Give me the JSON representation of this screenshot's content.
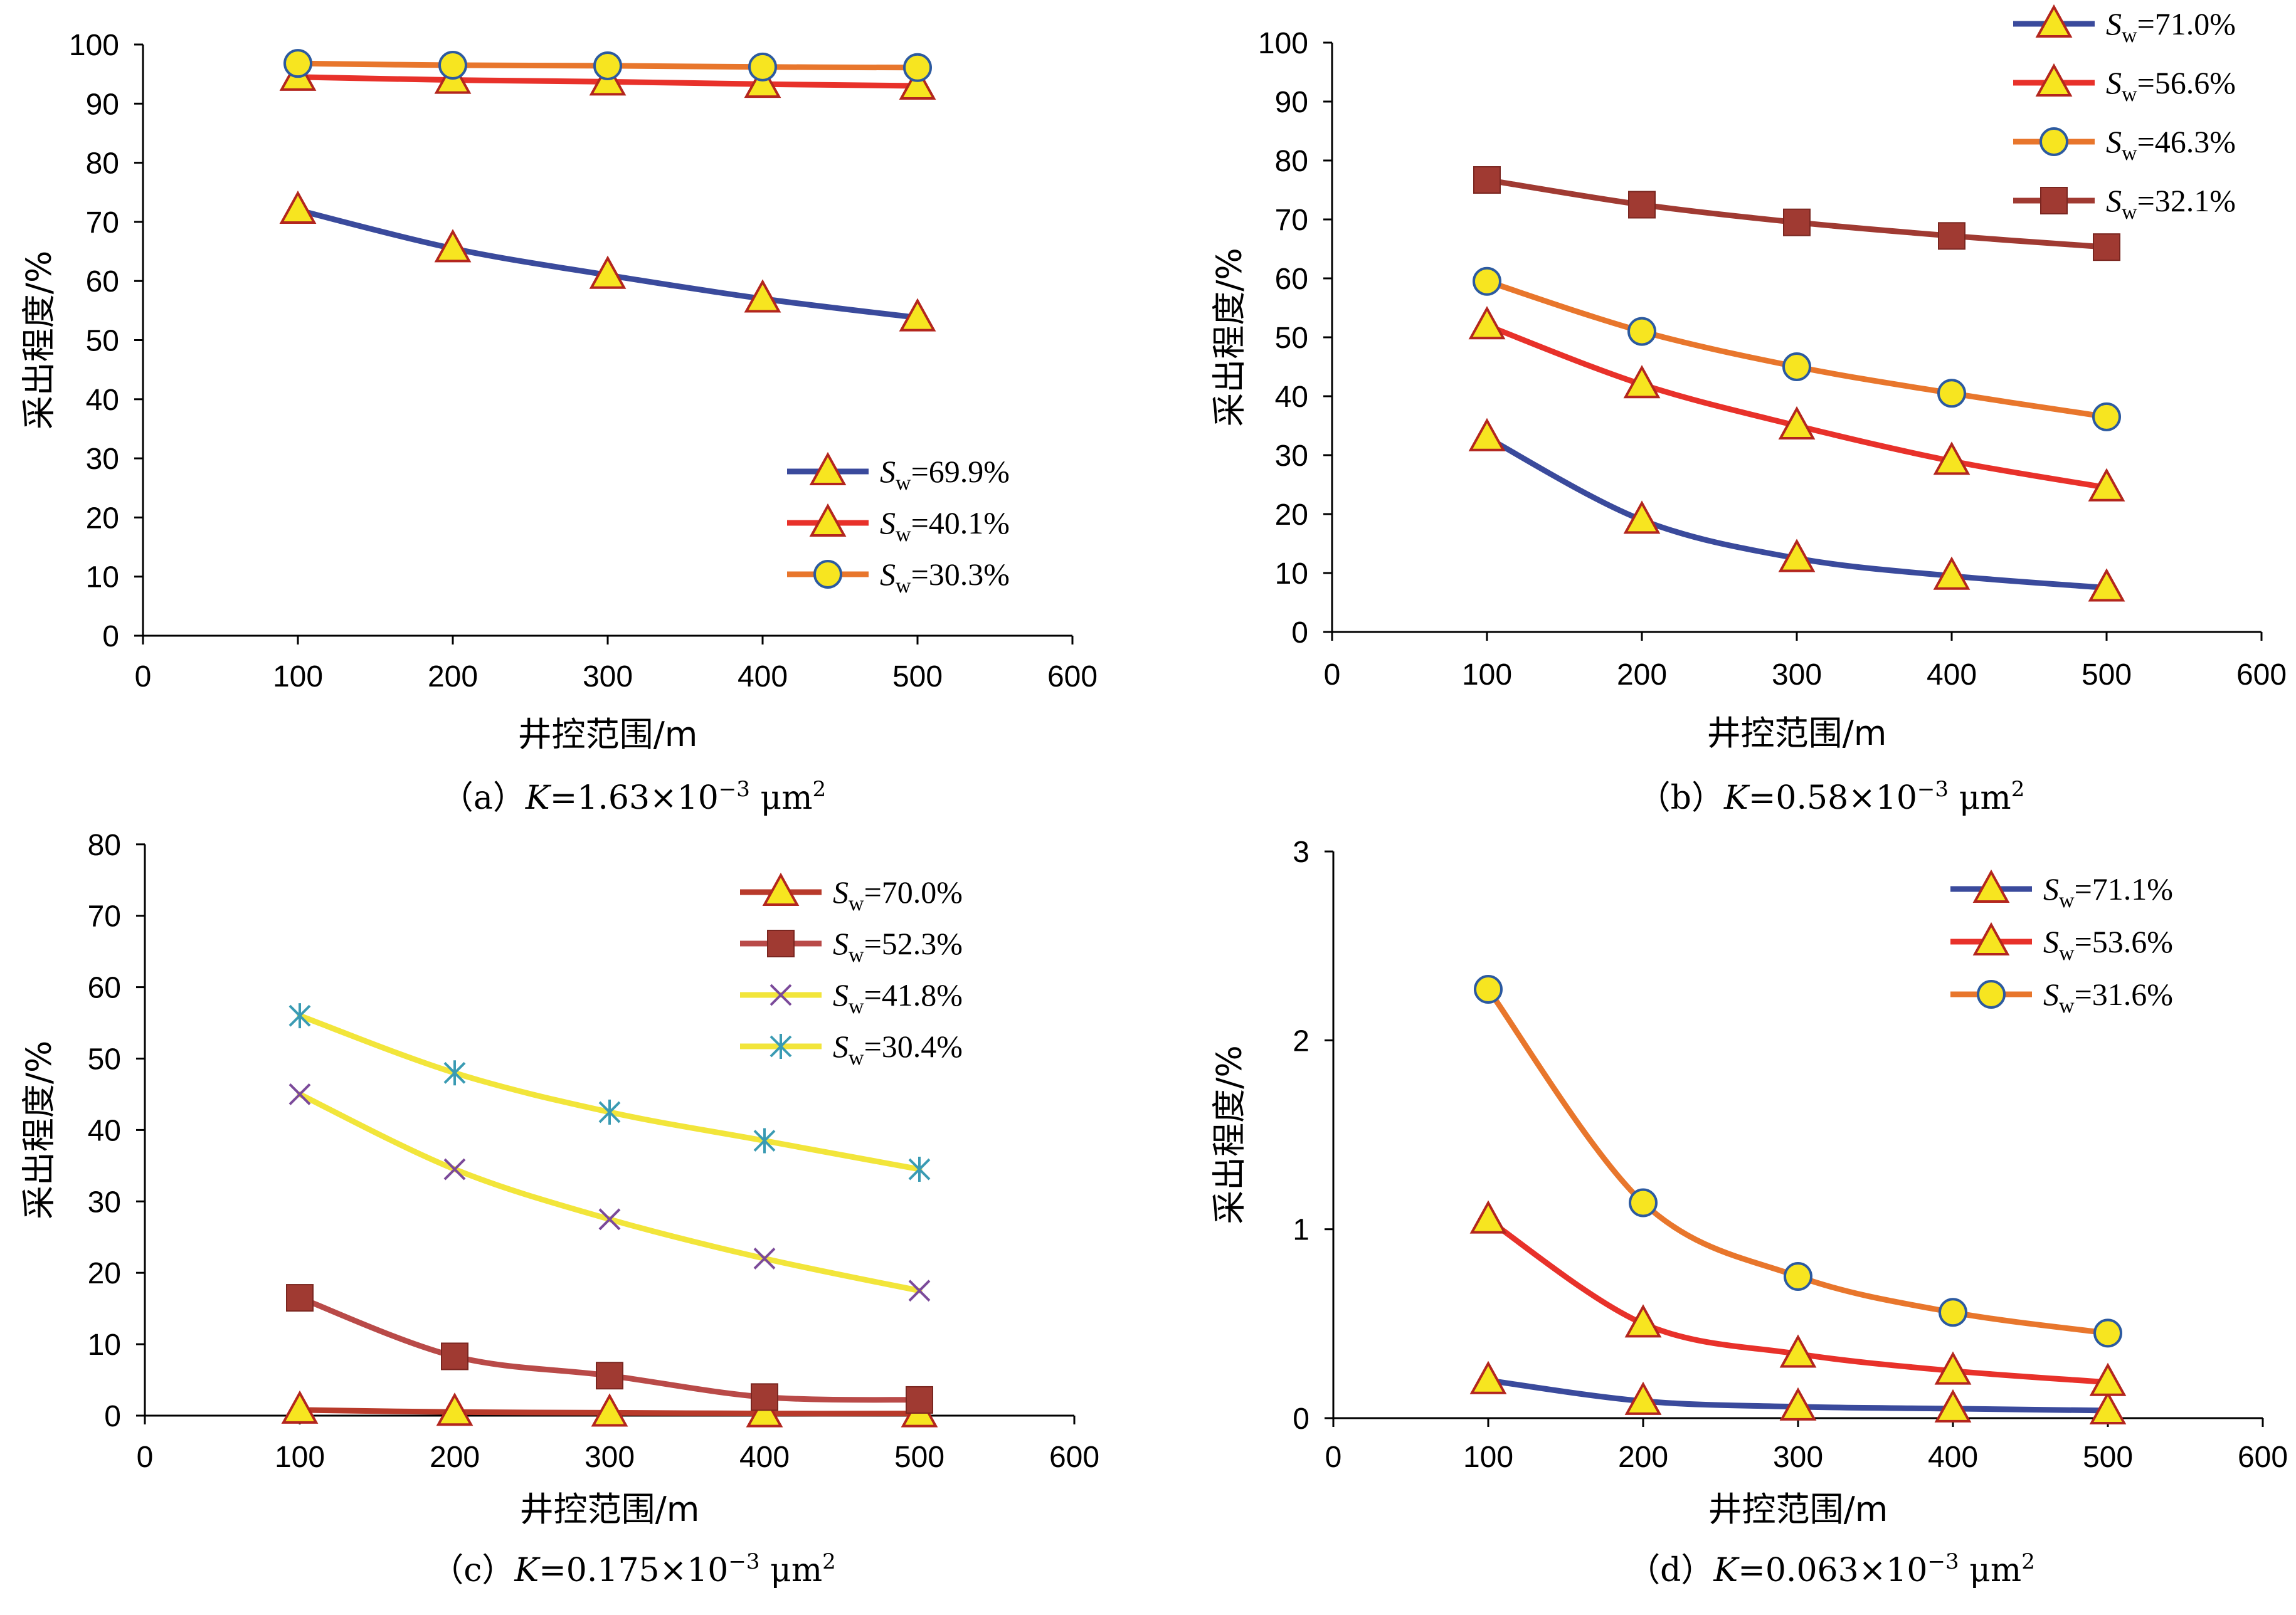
{
  "chart_data": [
    {
      "type": "line",
      "panel": "a",
      "caption": {
        "prefix": "（a）",
        "var": "K",
        "text": "=1.63×10",
        "exp": "−3",
        "unit": " μm",
        "unit_exp": "2"
      },
      "xlabel": "井控范围/m",
      "ylabel": "采出程度/%",
      "xlim": [
        0,
        600
      ],
      "ylim": [
        0,
        100
      ],
      "xticks": [
        0,
        100,
        200,
        300,
        400,
        500,
        600
      ],
      "yticks": [
        0,
        10,
        20,
        30,
        40,
        50,
        60,
        70,
        80,
        90,
        100
      ],
      "legend_position": "bottom-right",
      "x": [
        100,
        200,
        300,
        400,
        500
      ],
      "series": [
        {
          "name": "=69.9%",
          "var": "S",
          "sub": "w",
          "color": "#3a4a9c",
          "marker": "triangle",
          "values": [
            72,
            65.5,
            61,
            57,
            53.8
          ]
        },
        {
          "name": "=40.1%",
          "var": "S",
          "sub": "w",
          "color": "#e8312a",
          "marker": "triangle",
          "values": [
            94.5,
            94,
            93.7,
            93.3,
            93
          ]
        },
        {
          "name": "=30.3%",
          "var": "S",
          "sub": "w",
          "color": "#e8762c",
          "marker": "circle",
          "values": [
            96.8,
            96.5,
            96.4,
            96.2,
            96.1
          ]
        }
      ]
    },
    {
      "type": "line",
      "panel": "b",
      "caption": {
        "prefix": "（b）",
        "var": "K",
        "text": "=0.58×10",
        "exp": "−3",
        "unit": " μm",
        "unit_exp": "2"
      },
      "xlabel": "井控范围/m",
      "ylabel": "采出程度/%",
      "xlim": [
        0,
        600
      ],
      "ylim": [
        0,
        100
      ],
      "xticks": [
        0,
        100,
        200,
        300,
        400,
        500,
        600
      ],
      "yticks": [
        0,
        10,
        20,
        30,
        40,
        50,
        60,
        70,
        80,
        90,
        100
      ],
      "legend_position": "top-right",
      "x": [
        100,
        200,
        300,
        400,
        500
      ],
      "series": [
        {
          "name": "=71.0%",
          "var": "S",
          "sub": "w",
          "color": "#3a4a9c",
          "marker": "triangle",
          "values": [
            33,
            19,
            12.5,
            9.5,
            7.5
          ]
        },
        {
          "name": "=56.6%",
          "var": "S",
          "sub": "w",
          "color": "#e8312a",
          "marker": "triangle",
          "values": [
            52,
            42,
            35,
            29,
            24.5
          ]
        },
        {
          "name": "=46.3%",
          "var": "S",
          "sub": "w",
          "color": "#e8762c",
          "marker": "circle",
          "values": [
            59.5,
            51,
            45,
            40.5,
            36.5
          ]
        },
        {
          "name": "=32.1%",
          "var": "S",
          "sub": "w",
          "color": "#a03a32",
          "marker": "square",
          "values": [
            76.7,
            72.5,
            69.5,
            67.2,
            65.3
          ]
        }
      ]
    },
    {
      "type": "line",
      "panel": "c",
      "caption": {
        "prefix": "（c）",
        "var": "K",
        "text": "=0.175×10",
        "exp": "−3",
        "unit": " μm",
        "unit_exp": "2"
      },
      "xlabel": "井控范围/m",
      "ylabel": "采出程度/%",
      "xlim": [
        0,
        600
      ],
      "ylim": [
        0,
        80
      ],
      "xticks": [
        0,
        100,
        200,
        300,
        400,
        500,
        600
      ],
      "yticks": [
        0,
        10,
        20,
        30,
        40,
        50,
        60,
        70,
        80
      ],
      "legend_position": "top-right",
      "x": [
        100,
        200,
        300,
        400,
        500
      ],
      "series": [
        {
          "name": "=70.0%",
          "var": "S",
          "sub": "w",
          "color": "#b83a2a",
          "marker": "triangle",
          "values": [
            0.8,
            0.5,
            0.4,
            0.3,
            0.3
          ]
        },
        {
          "name": "=52.3%",
          "var": "S",
          "sub": "w",
          "color": "#b94a48",
          "marker": "square",
          "values": [
            16.5,
            8.3,
            5.6,
            2.6,
            2.2
          ]
        },
        {
          "name": "=41.8%",
          "var": "S",
          "sub": "w",
          "color": "#f2e53a",
          "marker": "x",
          "marker_color": "#7b4a9a",
          "values": [
            45,
            34.5,
            27.5,
            22,
            17.5
          ]
        },
        {
          "name": "=30.4%",
          "var": "S",
          "sub": "w",
          "color": "#f2e53a",
          "marker": "star",
          "marker_color": "#3a9bb3",
          "values": [
            56,
            48,
            42.5,
            38.5,
            34.5
          ]
        }
      ]
    },
    {
      "type": "line",
      "panel": "d",
      "caption": {
        "prefix": "（d）",
        "var": "K",
        "text": "=0.063×10",
        "exp": "−3",
        "unit": " μm",
        "unit_exp": "2"
      },
      "xlabel": "井控范围/m",
      "ylabel": "采出程度/%",
      "xlim": [
        0,
        600
      ],
      "ylim": [
        0,
        3
      ],
      "xticks": [
        0,
        100,
        200,
        300,
        400,
        500,
        600
      ],
      "yticks": [
        0,
        1,
        2,
        3
      ],
      "legend_position": "top-right",
      "x": [
        100,
        200,
        300,
        400,
        500
      ],
      "series": [
        {
          "name": "=71.1%",
          "var": "S",
          "sub": "w",
          "color": "#3a4a9c",
          "marker": "triangle",
          "values": [
            0.2,
            0.09,
            0.06,
            0.05,
            0.04
          ]
        },
        {
          "name": "=53.6%",
          "var": "S",
          "sub": "w",
          "color": "#e8312a",
          "marker": "triangle",
          "values": [
            1.05,
            0.5,
            0.34,
            0.25,
            0.19
          ]
        },
        {
          "name": "=31.6%",
          "var": "S",
          "sub": "w",
          "color": "#e8762c",
          "marker": "circle",
          "values": [
            2.27,
            1.14,
            0.75,
            0.56,
            0.45
          ]
        }
      ]
    }
  ],
  "style": {
    "marker_fill": "#f7e520",
    "marker_stroke": "#b3261e",
    "circle_stroke": "#2c5aa0",
    "square_fill": "#a03a32"
  }
}
